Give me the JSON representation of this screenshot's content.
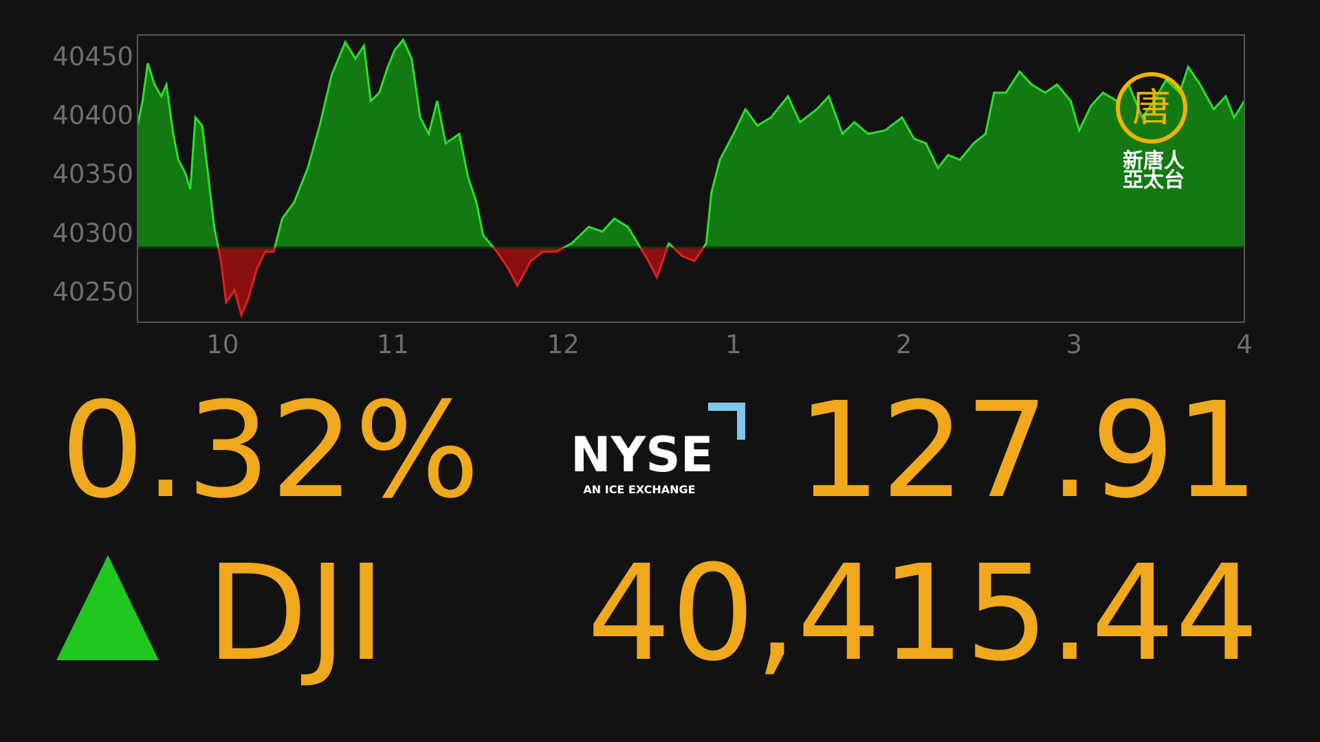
{
  "chart_data": {
    "type": "line",
    "x": [
      9.5,
      9.53,
      9.56,
      9.6,
      9.64,
      9.67,
      9.71,
      9.74,
      9.78,
      9.81,
      9.84,
      9.88,
      9.91,
      9.95,
      9.99,
      10.02,
      10.07,
      10.11,
      10.15,
      10.2,
      10.25,
      10.3,
      10.35,
      10.42,
      10.5,
      10.57,
      10.64,
      10.72,
      10.78,
      10.83,
      10.87,
      10.92,
      10.97,
      11.01,
      11.06,
      11.11,
      11.16,
      11.21,
      11.26,
      11.31,
      11.39,
      11.44,
      11.49,
      11.53,
      11.61,
      11.68,
      11.73,
      11.81,
      11.88,
      11.96,
      12.05,
      12.15,
      12.23,
      12.3,
      12.38,
      12.45,
      12.5,
      12.55,
      12.62,
      12.7,
      12.77,
      12.84,
      12.87,
      12.92,
      13.0,
      13.07,
      13.14,
      13.22,
      13.32,
      13.39,
      13.49,
      13.56,
      13.64,
      13.71,
      13.79,
      13.89,
      13.99,
      14.06,
      14.13,
      14.2,
      14.26,
      14.33,
      14.41,
      14.48,
      14.53,
      14.6,
      14.68,
      14.75,
      14.83,
      14.9,
      14.98,
      15.03,
      15.1,
      15.17,
      15.25,
      15.32,
      15.4,
      15.47,
      15.54,
      15.62,
      15.67,
      15.74,
      15.82,
      15.89,
      15.94,
      16.0
    ],
    "values": [
      40391,
      40412,
      40444,
      40426,
      40416,
      40426,
      40384,
      40362,
      40351,
      40337,
      40398,
      40391,
      40355,
      40305,
      40276,
      40241,
      40251,
      40230,
      40244,
      40269,
      40284,
      40284,
      40312,
      40326,
      40355,
      40391,
      40434,
      40462,
      40448,
      40459,
      40412,
      40419,
      40441,
      40455,
      40464,
      40448,
      40398,
      40384,
      40412,
      40376,
      40384,
      40348,
      40326,
      40298,
      40284,
      40269,
      40255,
      40276,
      40284,
      40284,
      40291,
      40305,
      40301,
      40312,
      40305,
      40288,
      40276,
      40262,
      40291,
      40280,
      40276,
      40291,
      40334,
      40362,
      40384,
      40405,
      40391,
      40398,
      40416,
      40394,
      40405,
      40416,
      40384,
      40394,
      40384,
      40387,
      40398,
      40380,
      40376,
      40355,
      40366,
      40362,
      40376,
      40384,
      40419,
      40419,
      40437,
      40426,
      40419,
      40426,
      40412,
      40387,
      40408,
      40419,
      40412,
      40426,
      40398,
      40412,
      40430,
      40419,
      40441,
      40426,
      40405,
      40416,
      40398,
      40412
    ],
    "baseline": 40287.53,
    "up_color": "#2ce02c",
    "down_color": "#e02020",
    "up_fill": "#137a13",
    "down_fill": "#8a1010",
    "xlim": [
      9.5,
      16
    ],
    "ylim": [
      40224,
      40468
    ],
    "yticks": [
      40250,
      40300,
      40350,
      40400,
      40450
    ],
    "xticks": [
      10,
      11,
      12,
      {
        "value": 13,
        "label": "1"
      },
      {
        "value": 14,
        "label": "2"
      },
      {
        "value": 15,
        "label": "3"
      },
      {
        "value": 16,
        "label": "4"
      }
    ]
  },
  "quote": {
    "change_percent": "0.32%",
    "change": "127.91",
    "symbol": "DJI",
    "price": "40,415.44"
  },
  "logo": {
    "name": "NYSE",
    "tagline": "AN ICE EXCHANGE"
  },
  "watermark": {
    "mark": "唐",
    "line1": "新唐人",
    "line2": "亞太台"
  }
}
